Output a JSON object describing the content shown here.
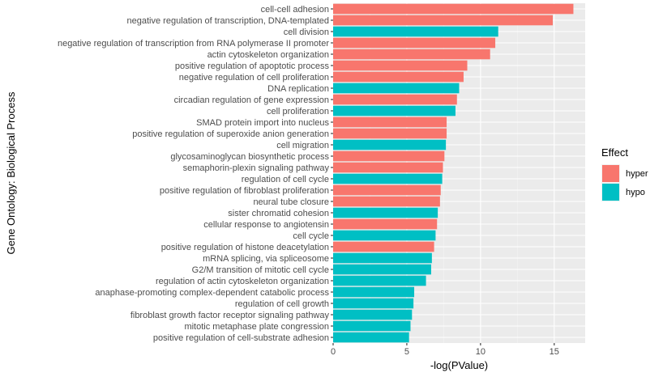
{
  "chart_data": {
    "type": "bar",
    "orientation": "horizontal",
    "xlabel": "-log(PValue)",
    "ylabel": "Gene Ontology: Biological Process",
    "xlim": [
      0,
      17.1
    ],
    "xticks": [
      0,
      5,
      10,
      15
    ],
    "grid": true,
    "legend": {
      "title": "Effect",
      "position": "right",
      "entries": [
        {
          "name": "hyper",
          "color": "#F8766D"
        },
        {
          "name": "hypo",
          "color": "#00BFC4"
        }
      ]
    },
    "bars": [
      {
        "category": "cell-cell adhesion",
        "value": 16.3,
        "effect": "hyper"
      },
      {
        "category": "negative regulation of transcription, DNA-templated",
        "value": 14.9,
        "effect": "hyper"
      },
      {
        "category": "cell division",
        "value": 11.2,
        "effect": "hypo"
      },
      {
        "category": "negative regulation of transcription from RNA polymerase II promoter",
        "value": 11.0,
        "effect": "hyper"
      },
      {
        "category": "actin cytoskeleton organization",
        "value": 10.65,
        "effect": "hyper"
      },
      {
        "category": "positive regulation of apoptotic process",
        "value": 9.1,
        "effect": "hyper"
      },
      {
        "category": "negative regulation of cell proliferation",
        "value": 8.85,
        "effect": "hyper"
      },
      {
        "category": "DNA replication",
        "value": 8.55,
        "effect": "hypo"
      },
      {
        "category": "circadian regulation of gene expression",
        "value": 8.4,
        "effect": "hyper"
      },
      {
        "category": "cell proliferation",
        "value": 8.3,
        "effect": "hypo"
      },
      {
        "category": "SMAD protein import into nucleus",
        "value": 7.7,
        "effect": "hyper"
      },
      {
        "category": "positive regulation of superoxide anion generation",
        "value": 7.7,
        "effect": "hyper"
      },
      {
        "category": "cell migration",
        "value": 7.65,
        "effect": "hypo"
      },
      {
        "category": "glycosaminoglycan biosynthetic process",
        "value": 7.55,
        "effect": "hyper"
      },
      {
        "category": "semaphorin-plexin signaling pathway",
        "value": 7.45,
        "effect": "hyper"
      },
      {
        "category": "regulation of cell cycle",
        "value": 7.4,
        "effect": "hypo"
      },
      {
        "category": "positive regulation of fibroblast proliferation",
        "value": 7.3,
        "effect": "hyper"
      },
      {
        "category": "neural tube closure",
        "value": 7.25,
        "effect": "hyper"
      },
      {
        "category": "sister chromatid cohesion",
        "value": 7.1,
        "effect": "hypo"
      },
      {
        "category": "cellular response to angiotensin",
        "value": 7.05,
        "effect": "hyper"
      },
      {
        "category": "cell cycle",
        "value": 6.95,
        "effect": "hypo"
      },
      {
        "category": "positive regulation of histone deacetylation",
        "value": 6.85,
        "effect": "hyper"
      },
      {
        "category": "mRNA splicing, via spliceosome",
        "value": 6.7,
        "effect": "hypo"
      },
      {
        "category": "G2/M transition of mitotic cell cycle",
        "value": 6.65,
        "effect": "hypo"
      },
      {
        "category": "regulation of actin cytoskeleton organization",
        "value": 6.3,
        "effect": "hypo"
      },
      {
        "category": "anaphase-promoting complex-dependent catabolic process",
        "value": 5.5,
        "effect": "hypo"
      },
      {
        "category": "regulation of cell growth",
        "value": 5.45,
        "effect": "hypo"
      },
      {
        "category": "fibroblast growth factor receptor signaling pathway",
        "value": 5.35,
        "effect": "hypo"
      },
      {
        "category": "mitotic metaphase plate congression",
        "value": 5.25,
        "effect": "hypo"
      },
      {
        "category": "positive regulation of cell-substrate adhesion",
        "value": 5.15,
        "effect": "hypo"
      }
    ]
  }
}
